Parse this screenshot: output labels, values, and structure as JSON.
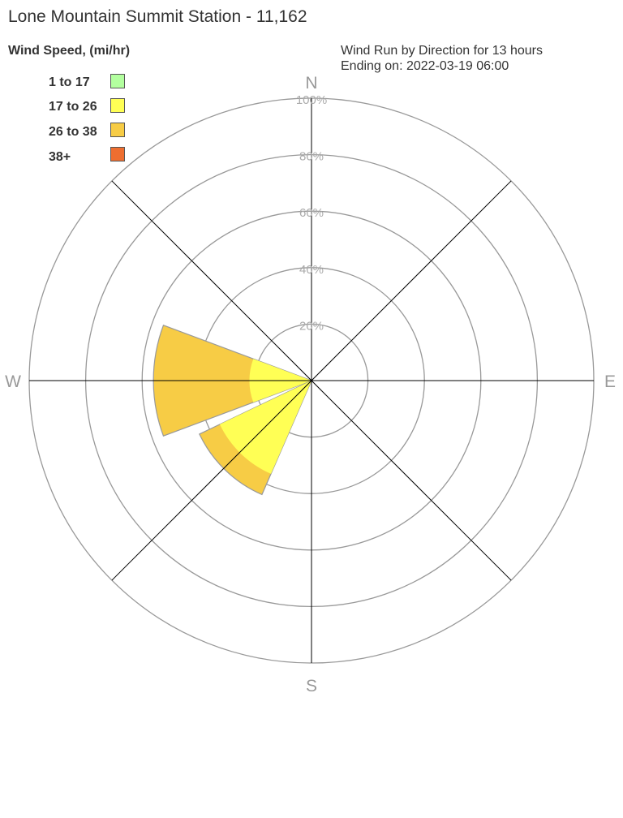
{
  "title": "Lone Mountain Summit Station - 11,162",
  "subtitle_line1": "Wind Run by Direction for 13 hours",
  "subtitle_line2": "Ending on: 2022-03-19 06:00",
  "chart_data": {
    "type": "wind-rose",
    "legend_title": "Wind Speed, (mi/hr)",
    "legend_placement": "top-left",
    "speed_bins": [
      {
        "label": "1 to 17",
        "color": "#b3ff9f"
      },
      {
        "label": "17 to 26",
        "color": "#ffff55"
      },
      {
        "label": "26 to 38",
        "color": "#f7cc45"
      },
      {
        "label": "38+",
        "color": "#ee6e30"
      }
    ],
    "directions": [
      "N",
      "NE",
      "E",
      "SE",
      "S",
      "SW",
      "W",
      "NW"
    ],
    "compass_labels": {
      "N": "N",
      "E": "E",
      "S": "S",
      "W": "W"
    },
    "ring_labels": [
      "20%",
      "40%",
      "60%",
      "80%",
      "100%"
    ],
    "r_range_percent": [
      0,
      100
    ],
    "series": [
      {
        "direction": "W",
        "values_percent": [
          0,
          22,
          34,
          0
        ]
      },
      {
        "direction": "SW",
        "values_percent": [
          0,
          36,
          8,
          0
        ]
      }
    ]
  }
}
